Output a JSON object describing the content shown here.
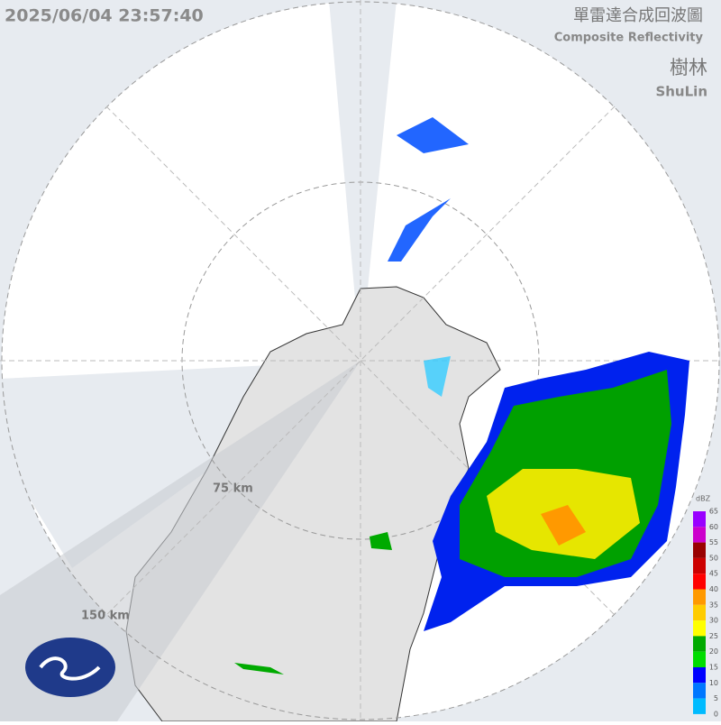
{
  "header": {
    "timestamp": "2025/06/04 23:57:40",
    "title": "單雷達合成回波圖",
    "subtitle": "Composite Reflectivity",
    "station": "樹林",
    "station_en": "ShuLin"
  },
  "range_rings": [
    "75 km",
    "150 km"
  ],
  "colorbar": {
    "unit": "dBZ",
    "ticks": [
      65,
      60,
      55,
      50,
      45,
      40,
      35,
      30,
      25,
      20,
      15,
      10,
      5,
      0
    ],
    "colors": [
      "#9900ff",
      "#cc00cc",
      "#990000",
      "#cc0000",
      "#ff0000",
      "#ff9900",
      "#ffcc00",
      "#ffff00",
      "#00aa00",
      "#00dd00",
      "#0000ff",
      "#0077ff",
      "#00bbff"
    ]
  }
}
